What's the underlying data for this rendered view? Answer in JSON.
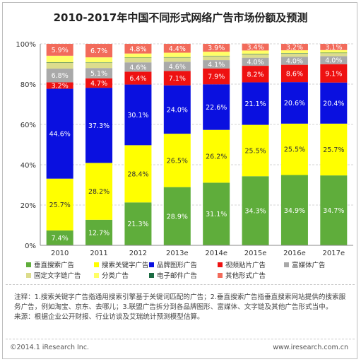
{
  "header": {
    "title": "2010-2017年中国不同形式网络广告市场份额及预测"
  },
  "chart_data": {
    "type": "bar",
    "stacked": true,
    "categories": [
      "2010",
      "2011",
      "2012",
      "2013e",
      "2014e",
      "2015e",
      "2016e",
      "2017e"
    ],
    "y_ticks": [
      "0%",
      "20%",
      "40%",
      "60%",
      "80%",
      "100%"
    ],
    "ylim": [
      0,
      100
    ],
    "series": [
      {
        "name": "垂直搜索广告",
        "color": "#5fad3b",
        "values": [
          7.4,
          12.7,
          21.3,
          28.9,
          31.1,
          34.3,
          34.9,
          34.7
        ],
        "labels": [
          "7.4%",
          "12.7%",
          "21.3%",
          "28.9%",
          "31.1%",
          "34.3%",
          "34.9%",
          "34.7%"
        ],
        "show_label": [
          true,
          true,
          true,
          true,
          true,
          true,
          true,
          true
        ]
      },
      {
        "name": "搜索关键字广告",
        "color": "#ffff00",
        "values": [
          25.7,
          28.2,
          28.4,
          26.5,
          26.2,
          25.5,
          25.5,
          25.7
        ],
        "labels": [
          "25.7%",
          "28.2%",
          "28.4%",
          "26.5%",
          "26.2%",
          "25.5%",
          "25.5%",
          "25.7%"
        ],
        "show_label": [
          true,
          true,
          true,
          true,
          true,
          true,
          true,
          true
        ]
      },
      {
        "name": "品牌图形广告",
        "color": "#0a10e0",
        "values": [
          44.6,
          37.3,
          30.1,
          24.0,
          22.6,
          21.1,
          20.6,
          20.4
        ],
        "labels": [
          "44.6%",
          "37.3%",
          "30.1%",
          "24.0%",
          "22.6%",
          "21.1%",
          "20.6%",
          "20.4%"
        ],
        "show_label": [
          true,
          true,
          true,
          true,
          true,
          true,
          true,
          true
        ]
      },
      {
        "name": "视频贴片广告",
        "color": "#ee1111",
        "values": [
          3.2,
          4.7,
          6.4,
          7.1,
          7.9,
          8.2,
          8.6,
          9.1
        ],
        "labels": [
          "3.2%",
          "4.7%",
          "6.4%",
          "7.1%",
          "7.9%",
          "8.2%",
          "8.6%",
          "9.1%"
        ],
        "show_label": [
          true,
          true,
          true,
          true,
          true,
          true,
          true,
          true
        ]
      },
      {
        "name": "富媒体广告",
        "color": "#a9a9a9",
        "values": [
          6.8,
          5.1,
          4.6,
          4.6,
          4.1,
          4.0,
          4.0,
          4.0
        ],
        "labels": [
          "6.8%",
          "5.1%",
          "4.6%",
          "4.6%",
          "4.1%",
          "4.0%",
          "4.0%",
          "4.0%"
        ],
        "show_label": [
          true,
          true,
          true,
          true,
          true,
          true,
          true,
          true
        ]
      },
      {
        "name": "固定文字链广告",
        "color": "#dcdc8c",
        "values": [
          3.0,
          2.6,
          2.2,
          2.1,
          2.0,
          1.8,
          1.6,
          1.5
        ],
        "labels": [
          "",
          "",
          "",
          "",
          "",
          "",
          "",
          ""
        ],
        "show_label": [
          false,
          false,
          false,
          false,
          false,
          false,
          false,
          false
        ]
      },
      {
        "name": "电子邮件广告",
        "color": "#1b6b42",
        "values": [
          0.2,
          0.2,
          0.2,
          0.2,
          0.2,
          0.2,
          0.2,
          0.2
        ],
        "labels": [
          "",
          "",
          "",
          "",
          "",
          "",
          "",
          ""
        ],
        "show_label": [
          false,
          false,
          false,
          false,
          false,
          false,
          false,
          false
        ]
      },
      {
        "name": "分类广告",
        "color": "#ffff66",
        "values": [
          3.2,
          2.5,
          2.0,
          2.2,
          2.0,
          1.6,
          1.4,
          1.3
        ],
        "labels": [
          "",
          "",
          "",
          "",
          "",
          "",
          "",
          ""
        ],
        "show_label": [
          false,
          false,
          false,
          false,
          false,
          false,
          false,
          false
        ]
      },
      {
        "name": "其他形式广告",
        "color": "#f26b5b",
        "values": [
          5.9,
          6.7,
          4.8,
          4.4,
          3.9,
          3.4,
          3.2,
          3.1
        ],
        "labels": [
          "5.9%",
          "6.7%",
          "4.8%",
          "4.4%",
          "3.9%",
          "3.4%",
          "3.2%",
          "3.1%"
        ],
        "show_label": [
          true,
          true,
          true,
          true,
          true,
          true,
          true,
          true
        ]
      }
    ],
    "legend": {
      "placement": "bottom",
      "rows": [
        [
          "垂直搜索广告",
          "搜索关键字广告",
          "品牌图形广告",
          "视频贴片广告",
          "富媒体广告"
        ],
        [
          "固定文字链广告",
          "分类广告",
          "电子邮件广告",
          "其他形式广告"
        ]
      ]
    }
  },
  "notes": {
    "line1": "注释：1.搜索关键字广告指通用搜索引擎基于关键词匹配的广告；2.垂直搜索广告指垂直搜索网站提供的搜索服务广告，例如淘宝、京东、去哪儿；3.联盟广告拆分到各品牌图形、富媒体、文字链及其他广告形式当中。",
    "line2": "来源：根据企业公开财报、行业访谈及艾瑞统计预测模型估算。"
  },
  "footer": {
    "copyright": "©2014.1 iResearch Inc.",
    "website": "www.iresearch.com.cn"
  }
}
